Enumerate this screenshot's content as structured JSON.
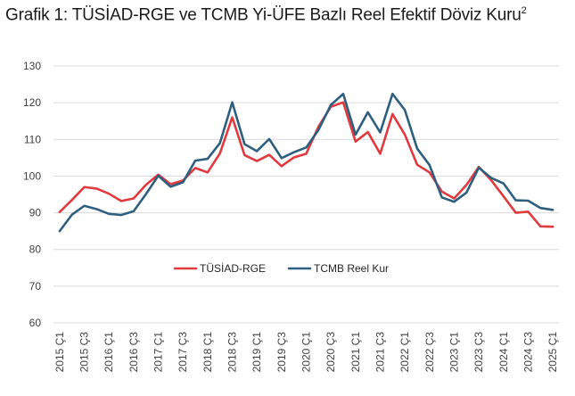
{
  "title": {
    "text": "Grafik 1: TÜSİAD-RGE ve TCMB Yi-ÜFE Bazlı Reel Efektif Döviz Kuru",
    "superscript": "2"
  },
  "chart_data": {
    "type": "line",
    "title": "Grafik 1: TÜSİAD-RGE ve TCMB Yi-ÜFE Bazlı Reel Efektif Döviz Kuru²",
    "xlabel": "",
    "ylabel": "",
    "ylim": [
      60,
      130
    ],
    "yticks": [
      "60",
      "70",
      "80",
      "90",
      "100",
      "110",
      "120",
      "130"
    ],
    "grid": true,
    "legend_position": "lower-center",
    "x": [
      "2015 Ç1",
      "2015 Ç2",
      "2015 Ç3",
      "2015 Ç4",
      "2016 Ç1",
      "2016 Ç2",
      "2016 Ç3",
      "2016 Ç4",
      "2017 Ç1",
      "2017 Ç2",
      "2017 Ç3",
      "2017 Ç4",
      "2018 Ç1",
      "2018 Ç2",
      "2018 Ç3",
      "2018 Ç4",
      "2019 Ç1",
      "2019 Ç2",
      "2019 Ç3",
      "2019 Ç4",
      "2020 Ç1",
      "2020 Ç2",
      "2020 Ç3",
      "2020 Ç4",
      "2021 Ç1",
      "2021 Ç2",
      "2021 Ç3",
      "2021 Ç4",
      "2022 Ç1",
      "2022 Ç2",
      "2022 Ç3",
      "2022 Ç4",
      "2023 Ç1",
      "2023 Ç2",
      "2023 Ç3",
      "2023 Ç4",
      "2024 Ç1",
      "2024 Ç2",
      "2024 Ç3",
      "2024 Ç4",
      "2025 Ç1"
    ],
    "xtick_labels": [
      "2015 Ç1",
      "2015 Ç3",
      "2016 Ç1",
      "2016 Ç3",
      "2017 Ç1",
      "2017 Ç3",
      "2018 Ç1",
      "2018 Ç3",
      "2019 Ç1",
      "2019 Ç3",
      "2020 Ç1",
      "2020 Ç3",
      "2021 Ç1",
      "2021 Ç3",
      "2022 Ç1",
      "2022 Ç3",
      "2023 Ç1",
      "2023 Ç3",
      "2024 Ç1",
      "2024 Ç3",
      "2025 Ç1"
    ],
    "series": [
      {
        "name": "TÜSİAD-RGE",
        "color": "#e03a3e",
        "values": [
          90.2,
          93.5,
          97.0,
          96.6,
          95.2,
          93.2,
          93.9,
          97.6,
          100.4,
          97.8,
          98.8,
          102.2,
          101.0,
          106.2,
          116.0,
          105.7,
          104.1,
          105.8,
          102.7,
          105.1,
          106.1,
          113.5,
          118.9,
          120.1,
          109.4,
          112.0,
          106.1,
          116.9,
          111.3,
          103.1,
          101.0,
          95.8,
          93.9,
          97.6,
          102.5,
          98.9,
          94.5,
          90.0,
          90.3,
          86.3,
          86.2
        ]
      },
      {
        "name": "TCMB Reel Kur",
        "color": "#2e5f7f",
        "values": [
          85.0,
          89.5,
          91.9,
          91.0,
          89.7,
          89.4,
          90.4,
          95.1,
          100.1,
          97.1,
          98.3,
          104.2,
          104.7,
          109.0,
          120.1,
          108.7,
          106.8,
          110.1,
          104.9,
          106.5,
          107.8,
          112.6,
          119.4,
          122.4,
          111.3,
          117.4,
          111.9,
          122.4,
          118.0,
          107.5,
          103.0,
          94.2,
          93.0,
          95.5,
          102.3,
          99.5,
          98.0,
          93.4,
          93.3,
          91.3,
          90.8
        ]
      }
    ]
  }
}
